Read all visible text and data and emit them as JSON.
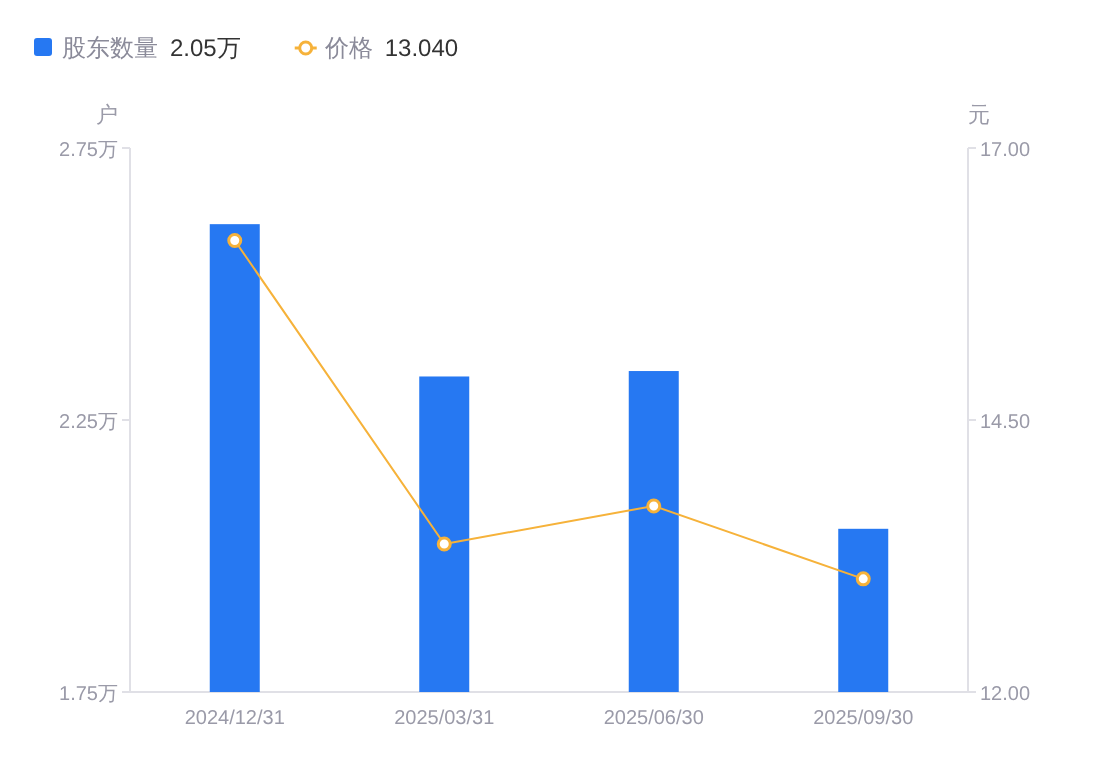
{
  "chart_data": {
    "type": "bar",
    "categories": [
      "2024/12/31",
      "2025/03/31",
      "2025/06/30",
      "2025/09/30"
    ],
    "ylabel": "户",
    "y2label": "元",
    "series": [
      {
        "name": "股东数量",
        "color": "#2678f2",
        "values": [
          2.61,
          2.33,
          2.34,
          2.05
        ]
      },
      {
        "name": "价格",
        "type": "line",
        "axis": "y2",
        "color": "#f6b23a",
        "marker": "circle",
        "values": [
          16.15,
          13.36,
          13.71,
          13.04
        ]
      }
    ],
    "ylim": [
      1.75,
      2.75
    ],
    "yticks": [
      {
        "value": 1.75,
        "label": "1.75万"
      },
      {
        "value": 2.25,
        "label": "2.25万"
      },
      {
        "value": 2.75,
        "label": "2.75万"
      }
    ],
    "y2lim": [
      12,
      17
    ],
    "y2ticks": [
      {
        "value": 12,
        "label": "12.00"
      },
      {
        "value": 14.5,
        "label": "14.50"
      },
      {
        "value": 17,
        "label": "17.00"
      }
    ],
    "annotations": [
      "2.05万",
      "13.040"
    ],
    "legend": "top left",
    "grid": false
  }
}
